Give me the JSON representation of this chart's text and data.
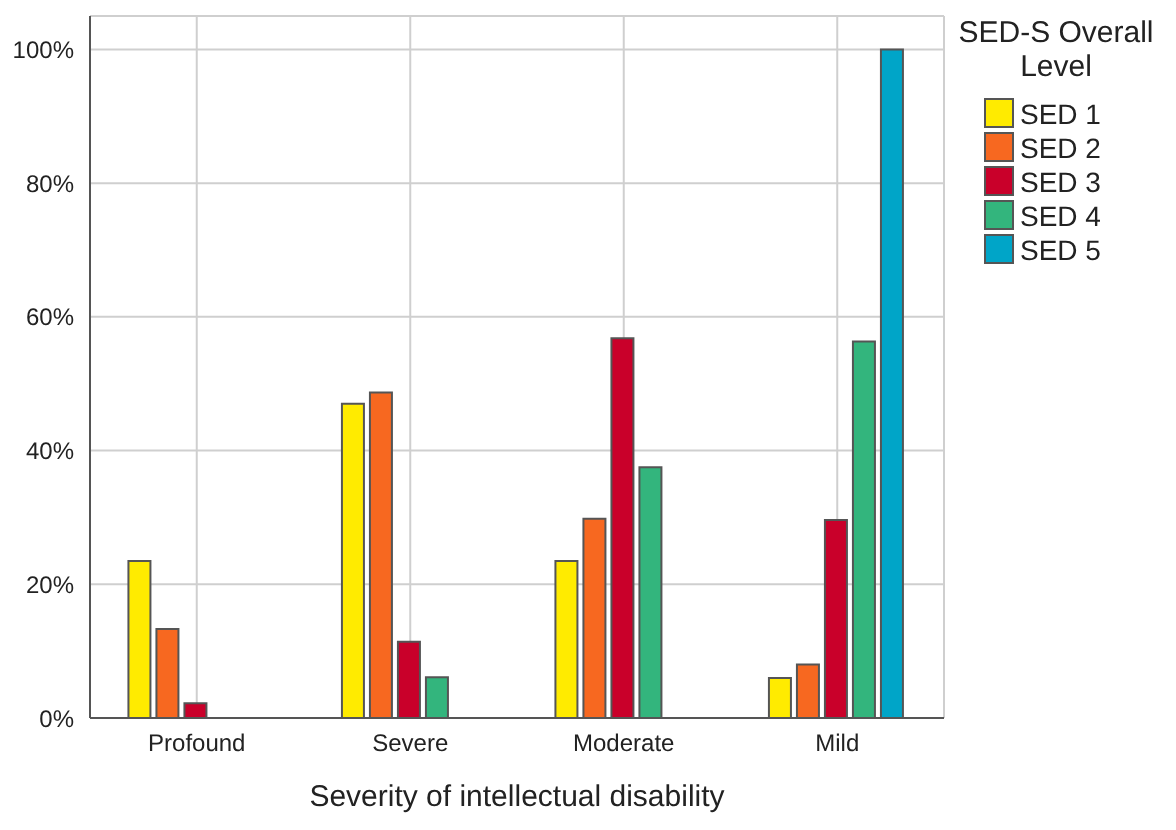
{
  "chart_data": {
    "type": "bar",
    "xlabel": "Severity of intellectual disability",
    "legend_title": "SED-S Overall Level",
    "categories": [
      "Profound",
      "Severe",
      "Moderate",
      "Mild"
    ],
    "series": [
      {
        "name": "SED 1",
        "color": "#ffeb00",
        "values": [
          23.5,
          47.0,
          23.5,
          6.0
        ]
      },
      {
        "name": "SED 2",
        "color": "#f76820",
        "values": [
          13.3,
          48.7,
          29.8,
          8.0
        ]
      },
      {
        "name": "SED 3",
        "color": "#c9002a",
        "values": [
          2.2,
          11.4,
          56.8,
          29.6
        ]
      },
      {
        "name": "SED 4",
        "color": "#33b57d",
        "values": [
          0,
          6.1,
          37.5,
          56.3
        ]
      },
      {
        "name": "SED 5",
        "color": "#00a5c8",
        "values": [
          0,
          0,
          0,
          100
        ]
      }
    ],
    "ylim": [
      0,
      105
    ],
    "yticks": [
      {
        "value": 0,
        "label": "0%"
      },
      {
        "value": 20,
        "label": "20%"
      },
      {
        "value": 40,
        "label": "40%"
      },
      {
        "value": 60,
        "label": "60%"
      },
      {
        "value": 80,
        "label": "80%"
      },
      {
        "value": 100,
        "label": "100%"
      }
    ],
    "grid": true,
    "legend": "top right"
  }
}
